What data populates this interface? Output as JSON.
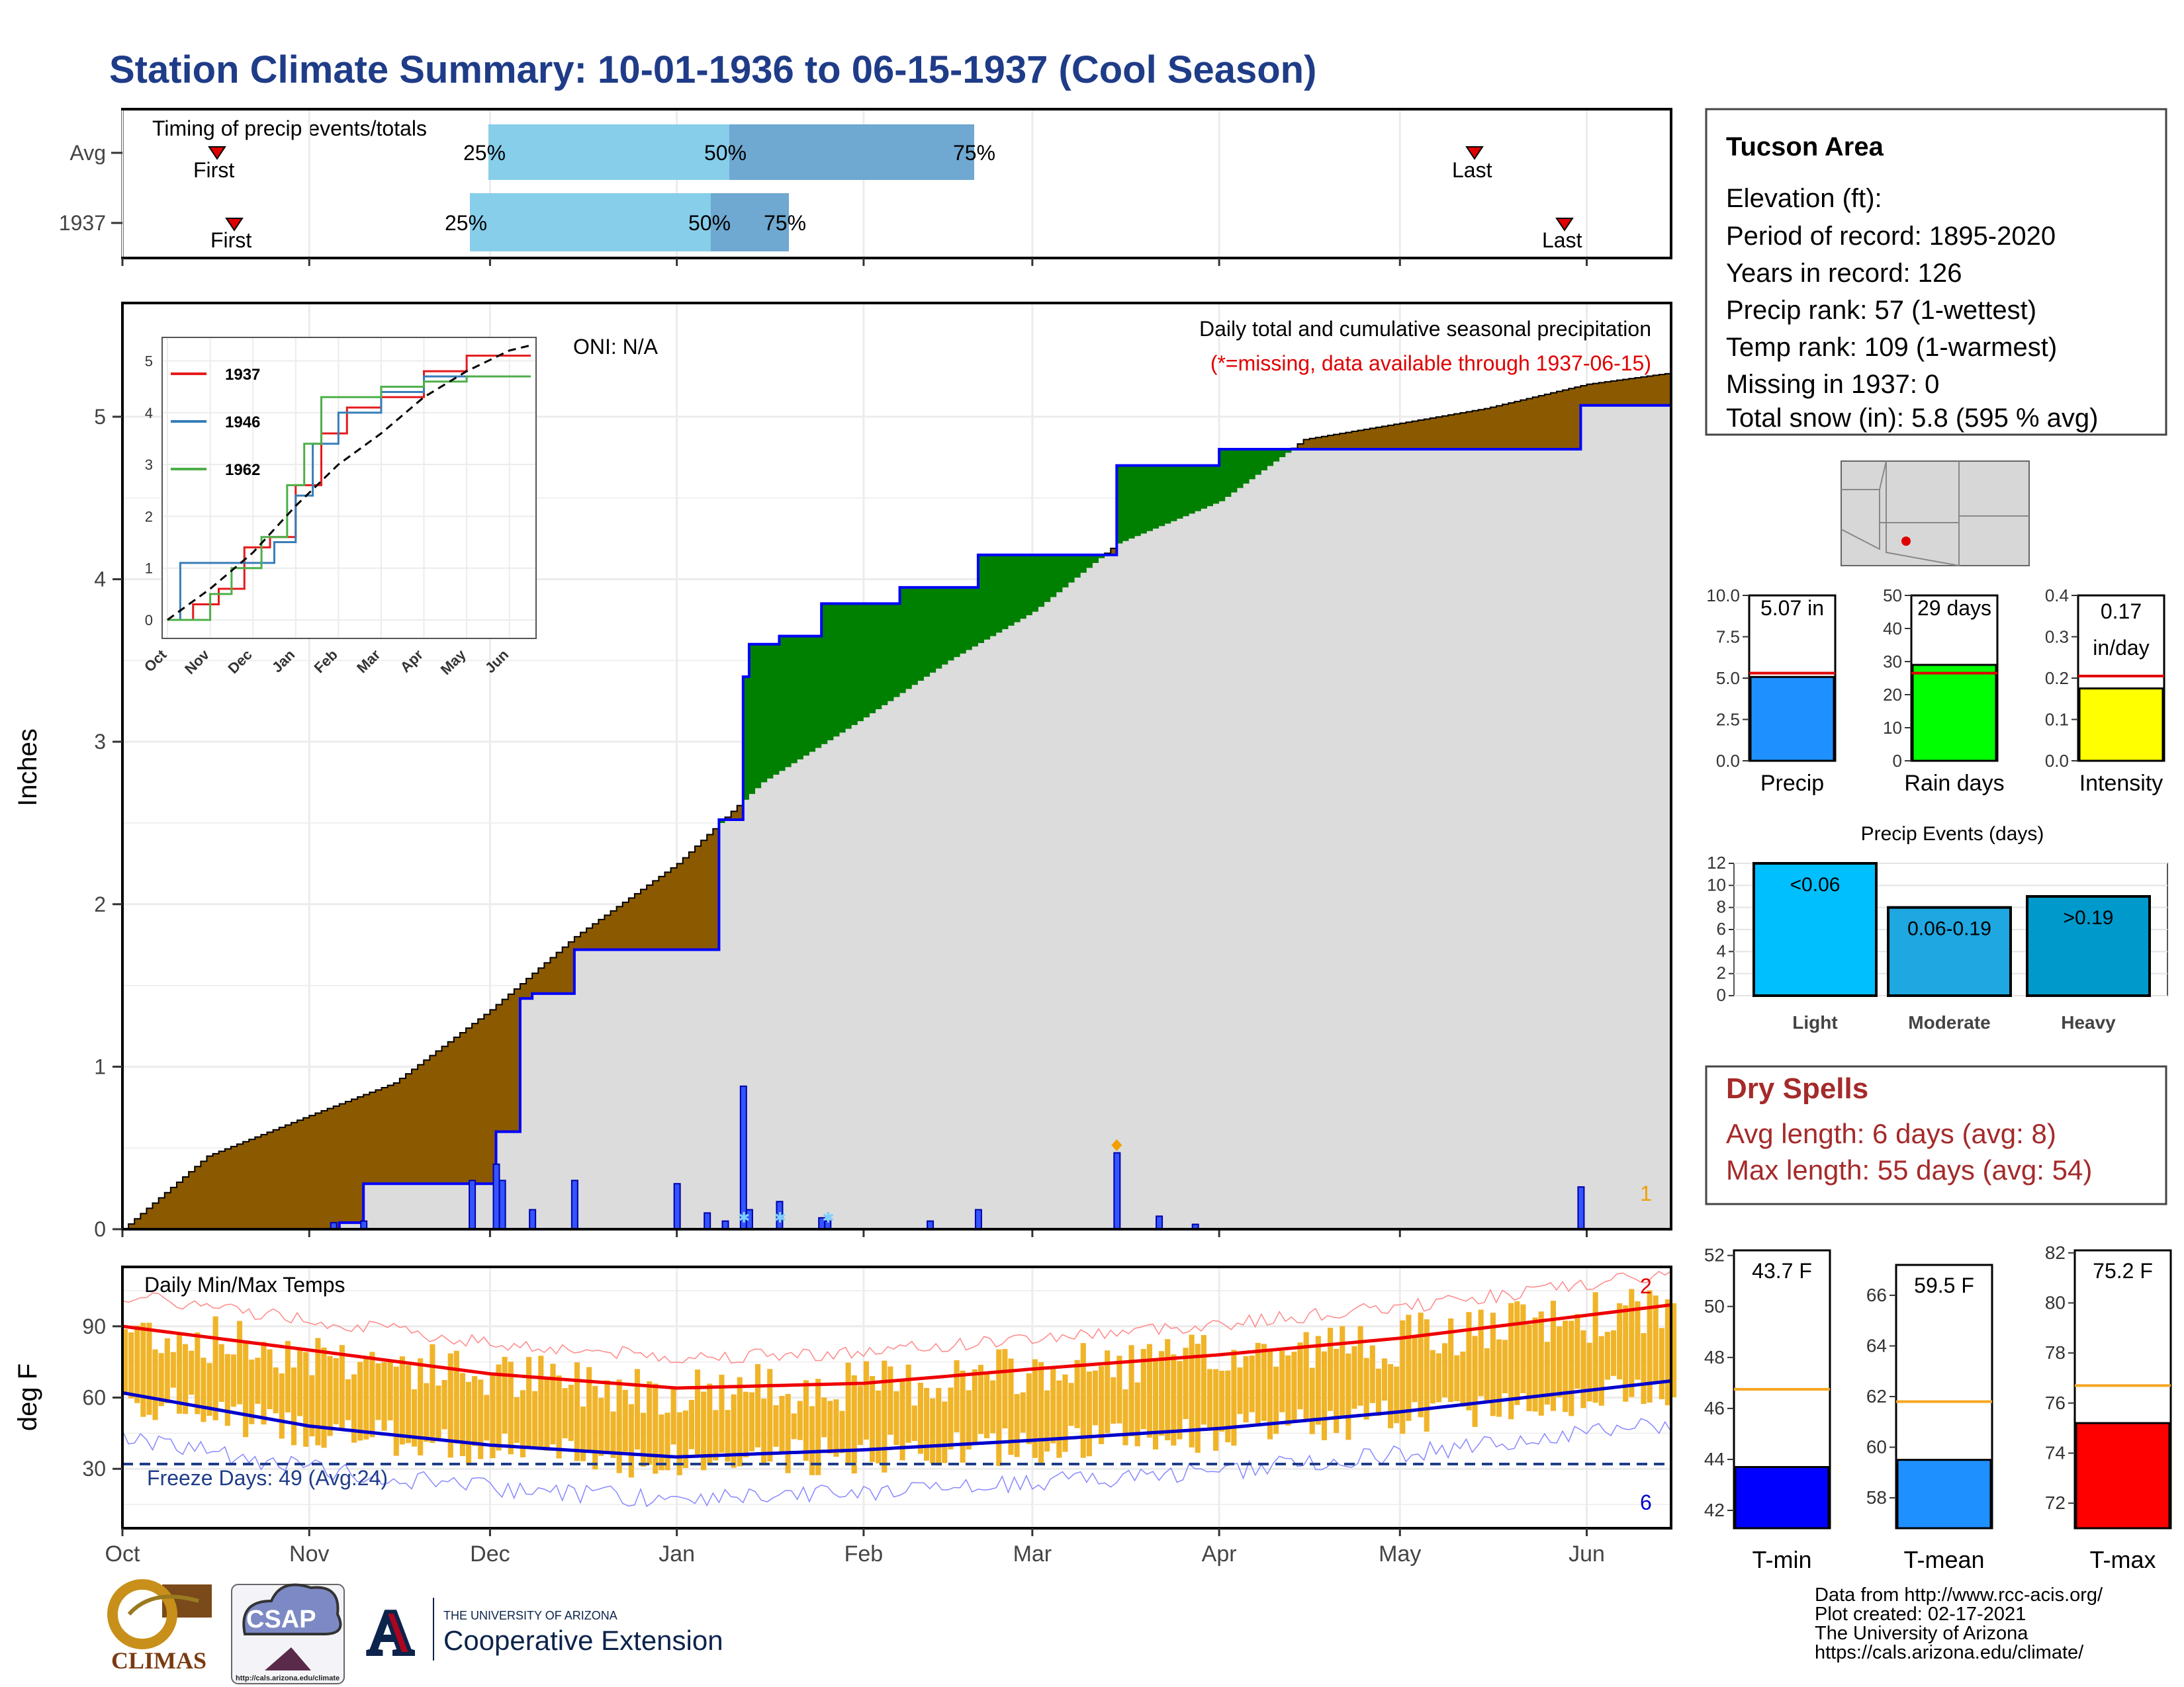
{
  "title": "Station Climate Summary: 10-01-1936 to 06-15-1937 (Cool Season)",
  "colors": {
    "title": "#1f3c88",
    "avg_cum_fill": "#8b5a00",
    "above_fill": "#008000",
    "cum_area": "#dcdcdc",
    "obs_line": "#0000ff",
    "daily_bar": "#3355ff",
    "tmin_line": "#0000cc",
    "tmax_line": "#ee0000",
    "temp_bar": "#f0b429",
    "dry_spells": "#a52a2a",
    "freeze_line": "#1f3c88",
    "q_light": "#87ceeb",
    "q_dark": "#6fa8d0"
  },
  "timing": {
    "title": "Timing of precip events/totals",
    "rows": [
      {
        "label": "Avg",
        "first": "First",
        "last": "Last",
        "p25": "25%",
        "p50": "50%",
        "p75": "75%"
      },
      {
        "label": "1937",
        "first": "First",
        "last": "Last",
        "p25": "25%",
        "p50": "50%",
        "p75": "75%"
      }
    ]
  },
  "main": {
    "ylabel": "Inches",
    "oni": "ONI: N/A",
    "title": "Daily total and cumulative seasonal precipitation",
    "missing_note": "(*=missing, data available through 1937-06-15)",
    "missing_count": "1",
    "yticks": [
      "0",
      "1",
      "2",
      "3",
      "4",
      "5"
    ]
  },
  "inset": {
    "legend": [
      "1937",
      "1946",
      "1962"
    ],
    "yticks": [
      "0",
      "1",
      "2",
      "3",
      "4",
      "5"
    ],
    "xticks": [
      "Oct",
      "Nov",
      "Dec",
      "Jan",
      "Feb",
      "Mar",
      "Apr",
      "May",
      "Jun"
    ]
  },
  "temps": {
    "title": "Daily Min/Max Temps",
    "ylabel": "deg F",
    "yticks": [
      "30",
      "60",
      "90"
    ],
    "freeze": "Freeze Days: 49 (Avg:24)",
    "max_count": "2",
    "min_count": "6"
  },
  "months": [
    "Oct",
    "Nov",
    "Dec",
    "Jan",
    "Feb",
    "Mar",
    "Apr",
    "May",
    "Jun"
  ],
  "station": {
    "name": "Tucson Area",
    "lines": [
      "Elevation (ft):",
      "Period of record: 1895-2020",
      "Years in record: 126",
      "Precip rank: 57 (1-wettest)",
      "Temp rank: 109 (1-warmest)",
      "Missing in 1937: 0",
      "Total snow (in): 5.8 (595 % avg)"
    ]
  },
  "minicharts": [
    {
      "label": "Precip",
      "value_text": "5.07 in",
      "yticks": [
        "0.0",
        "2.5",
        "5.0",
        "7.5",
        "10.0"
      ],
      "ymax": 10,
      "value": 5.07,
      "avg": 5.3,
      "color": "#1e90ff"
    },
    {
      "label": "Rain days",
      "value_text": "29 days",
      "yticks": [
        "0",
        "10",
        "20",
        "30",
        "40",
        "50"
      ],
      "ymax": 50,
      "value": 29,
      "avg": 26.5,
      "color": "#00ff00"
    },
    {
      "label": "Intensity",
      "value_text": "0.17",
      "value_text2": "in/day",
      "yticks": [
        "0.0",
        "0.1",
        "0.2",
        "0.3",
        "0.4"
      ],
      "ymax": 0.4,
      "value": 0.175,
      "avg": 0.205,
      "color": "#ffff00"
    }
  ],
  "events": {
    "title": "Precip Events (days)",
    "yticks": [
      "0",
      "2",
      "4",
      "6",
      "8",
      "10",
      "12"
    ],
    "bars": [
      {
        "name": "Light",
        "label": "<0.06",
        "value": 12,
        "color": "#00bfff"
      },
      {
        "name": "Moderate",
        "label": "0.06-0.19",
        "value": 8,
        "color": "#1ea7e0"
      },
      {
        "name": "Heavy",
        "label": ">0.19",
        "value": 9,
        "color": "#0099cc"
      }
    ]
  },
  "dry_spells": {
    "title": "Dry Spells",
    "avg": "Avg length: 6 days (avg: 8)",
    "max": "Max length: 55 days (avg: 54)"
  },
  "tempbars": [
    {
      "label": "T-min",
      "value_text": "43.7 F",
      "yticks": [
        "42",
        "44",
        "46",
        "48",
        "50",
        "52"
      ],
      "ymin": 41.3,
      "ymax": 52.2,
      "value": 43.7,
      "avg": 46.75,
      "color": "#0000ff"
    },
    {
      "label": "T-mean",
      "value_text": "59.5 F",
      "yticks": [
        "58",
        "60",
        "62",
        "64",
        "66"
      ],
      "ymin": 56.8,
      "ymax": 67.2,
      "value": 59.5,
      "avg": 61.8,
      "color": "#1e90ff"
    },
    {
      "label": "T-max",
      "value_text": "75.2 F",
      "yticks": [
        "72",
        "74",
        "76",
        "78",
        "80",
        "82"
      ],
      "ymin": 71.0,
      "ymax": 82.1,
      "value": 75.2,
      "avg": 76.7,
      "color": "#ff0000"
    }
  ],
  "footer": {
    "lines": [
      "Data from http://www.rcc-acis.org/",
      "Plot created: 02-17-2021",
      "The University of Arizona",
      "https://cals.arizona.edu/climate/"
    ],
    "logo_climas": "CLIMAS",
    "logo_csap": "CSAP",
    "csap_url": "http://cals.arizona.edu/climate",
    "ua_line1": "THE UNIVERSITY OF ARIZONA",
    "ua_line2": "Cooperative Extension",
    "ua_letter": "A"
  },
  "chart_data": [
    {
      "type": "line",
      "title": "Daily total and cumulative seasonal precipitation",
      "ylabel": "Inches",
      "x_range": [
        "1936-10-01",
        "1937-06-15"
      ],
      "ylim": [
        0,
        5.7
      ],
      "series": [
        {
          "name": "observed cumulative",
          "x": [
            "1936-10-01",
            "1936-11-06",
            "1936-11-10",
            "1936-11-28",
            "1936-12-02",
            "1936-12-06",
            "1936-12-08",
            "1936-12-15",
            "1937-01-08",
            "1937-01-12",
            "1937-01-13",
            "1937-01-18",
            "1937-01-25",
            "1937-02-07",
            "1937-02-20",
            "1937-03-15",
            "1937-04-01",
            "1937-05-31",
            "1937-06-15"
          ],
          "values": [
            0.0,
            0.04,
            0.28,
            0.28,
            0.6,
            1.42,
            1.45,
            1.72,
            2.52,
            3.4,
            3.6,
            3.65,
            3.85,
            3.95,
            4.15,
            4.7,
            4.8,
            5.07,
            5.07
          ]
        },
        {
          "name": "average cumulative",
          "x": [
            "1936-10-01",
            "1936-10-15",
            "1936-11-01",
            "1936-11-15",
            "1936-12-01",
            "1936-12-15",
            "1937-01-01",
            "1937-01-15",
            "1937-02-01",
            "1937-02-15",
            "1937-03-01",
            "1937-03-15",
            "1937-04-01",
            "1937-04-15",
            "1937-05-01",
            "1937-05-15",
            "1937-06-01",
            "1937-06-15"
          ],
          "values": [
            0.0,
            0.45,
            0.7,
            0.9,
            1.35,
            1.8,
            2.25,
            2.75,
            3.15,
            3.5,
            3.8,
            4.22,
            4.48,
            4.86,
            4.96,
            5.05,
            5.2,
            5.27
          ]
        },
        {
          "name": "daily precip",
          "x": [
            "1936-11-05",
            "1936-11-10",
            "1936-11-28",
            "1936-12-02",
            "1936-12-03",
            "1936-12-08",
            "1936-12-15",
            "1937-01-01",
            "1937-01-06",
            "1937-01-09",
            "1937-01-12",
            "1937-01-13",
            "1937-01-18",
            "1937-01-25",
            "1937-01-26",
            "1937-02-12",
            "1937-02-20",
            "1937-03-15",
            "1937-03-22",
            "1937-03-28",
            "1937-05-31"
          ],
          "values": [
            0.04,
            0.05,
            0.3,
            0.4,
            0.3,
            0.12,
            0.3,
            0.28,
            0.1,
            0.05,
            0.88,
            0.12,
            0.17,
            0.07,
            0.05,
            0.05,
            0.12,
            0.47,
            0.08,
            0.03,
            0.26
          ]
        }
      ]
    },
    {
      "type": "line",
      "title": "Daily Min/Max Temps",
      "ylabel": "deg F",
      "ylim": [
        5,
        115
      ],
      "x_range": [
        "1936-10-01",
        "1937-06-15"
      ],
      "series": [
        {
          "name": "avg max",
          "x": [
            "1936-10-01",
            "1936-11-01",
            "1936-12-01",
            "1937-01-01",
            "1937-02-01",
            "1937-03-01",
            "1937-04-01",
            "1937-05-01",
            "1937-06-15"
          ],
          "values": [
            90,
            80,
            70,
            64,
            66,
            72,
            78,
            85,
            99
          ]
        },
        {
          "name": "avg min",
          "x": [
            "1936-10-01",
            "1936-11-01",
            "1936-12-01",
            "1937-01-01",
            "1937-02-01",
            "1937-03-01",
            "1937-04-01",
            "1937-05-01",
            "1937-06-15"
          ],
          "values": [
            62,
            48,
            40,
            35,
            38,
            42,
            47,
            54,
            67
          ]
        },
        {
          "name": "freeze line",
          "x": [
            "1936-10-01",
            "1937-06-15"
          ],
          "values": [
            32,
            32
          ]
        }
      ]
    },
    {
      "type": "line",
      "title": "",
      "x_range": [
        "Oct",
        "Jun"
      ],
      "ylim": [
        0,
        5.3
      ],
      "series": [
        {
          "name": "1937",
          "x": [
            0,
            0.6,
            1.2,
            1.8,
            2.4,
            3.0,
            3.6,
            4.2,
            5.0,
            6.0,
            7.0,
            8.5
          ],
          "values": [
            0,
            0.3,
            0.6,
            1.4,
            1.6,
            2.6,
            3.6,
            4.1,
            4.3,
            4.8,
            5.1,
            5.1
          ]
        },
        {
          "name": "1946",
          "x": [
            0,
            0.3,
            1.0,
            2.0,
            2.5,
            3.0,
            3.4,
            4.0,
            5.0,
            6.0,
            7.0,
            8.5
          ],
          "values": [
            0,
            1.1,
            1.1,
            1.1,
            1.5,
            2.4,
            3.4,
            4.0,
            4.4,
            4.7,
            4.7,
            4.7
          ]
        },
        {
          "name": "1962",
          "x": [
            0,
            1.0,
            1.5,
            2.2,
            2.8,
            3.2,
            3.6,
            4.0,
            5.0,
            6.0,
            7.0,
            8.5
          ],
          "values": [
            0,
            0.5,
            1.0,
            1.6,
            2.6,
            3.4,
            4.3,
            4.3,
            4.5,
            4.6,
            4.7,
            4.7
          ]
        },
        {
          "name": "average",
          "x": [
            0,
            1,
            2,
            3,
            4,
            5,
            6,
            7,
            8,
            8.5
          ],
          "values": [
            0,
            0.6,
            1.3,
            2.2,
            3.0,
            3.6,
            4.3,
            4.8,
            5.2,
            5.3
          ]
        }
      ]
    },
    {
      "type": "bar",
      "title": "Precip Events (days)",
      "categories": [
        "Light",
        "Moderate",
        "Heavy"
      ],
      "values": [
        12,
        8,
        9
      ],
      "ylim": [
        0,
        12
      ]
    }
  ]
}
